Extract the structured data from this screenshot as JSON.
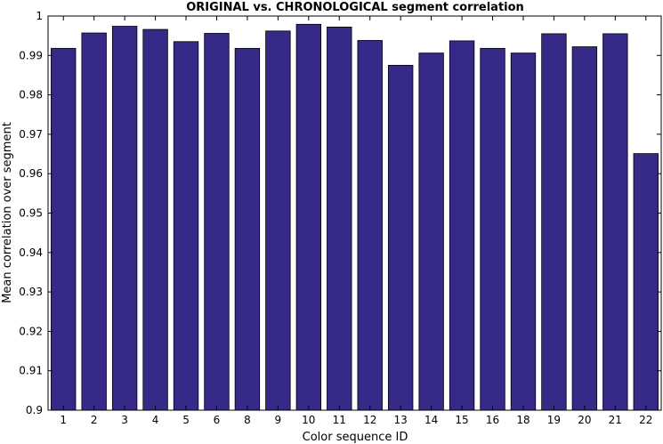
{
  "chart_data": {
    "type": "bar",
    "title": "ORIGINAL vs. CHRONOLOGICAL segment correlation",
    "xlabel": "Color sequence ID",
    "ylabel": "Mean correlation over segment",
    "categories": [
      "1",
      "2",
      "3",
      "4",
      "5",
      "6",
      "8",
      "9",
      "10",
      "11",
      "12",
      "13",
      "14",
      "15",
      "16",
      "18",
      "19",
      "20",
      "21",
      "22"
    ],
    "values": [
      0.9918,
      0.9957,
      0.9974,
      0.9966,
      0.9935,
      0.9956,
      0.9918,
      0.9962,
      0.9979,
      0.9972,
      0.9938,
      0.9875,
      0.9906,
      0.9937,
      0.9918,
      0.9906,
      0.9955,
      0.9922,
      0.9955,
      0.9651
    ],
    "ylim": [
      0.9,
      1.0
    ],
    "yticks": [
      0.9,
      0.91,
      0.92,
      0.93,
      0.94,
      0.95,
      0.96,
      0.97,
      0.98,
      0.99
    ],
    "ytick_labels": [
      "0.9",
      "0.91",
      "0.92",
      "0.93",
      "0.94",
      "0.95",
      "0.96",
      "0.97",
      "0.98",
      "0.99"
    ],
    "ytop_label": "1",
    "bar_color": "#352a87",
    "grid": false,
    "legend": "none"
  }
}
